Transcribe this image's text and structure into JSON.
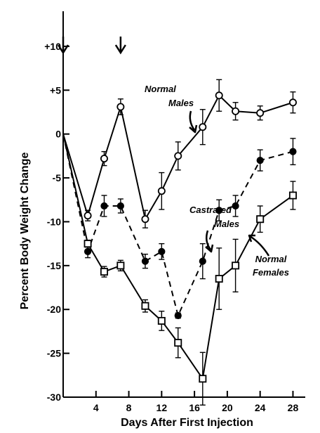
{
  "chart_data": {
    "type": "line",
    "title": "",
    "xlabel": "Days After First Injection",
    "ylabel": "Percent Body Weight Change",
    "xlim": [
      0,
      29.5
    ],
    "ylim": [
      -30,
      14
    ],
    "xticks": [
      4,
      8,
      12,
      16,
      20,
      24,
      28
    ],
    "xtick_labels": [
      "4",
      "8",
      "12",
      "16",
      "20",
      "24",
      "28"
    ],
    "yticks": [
      10,
      5,
      0,
      -5,
      -10,
      -15,
      -20,
      -25,
      -30
    ],
    "ytick_labels": [
      "+10",
      "+5",
      "0",
      "-5",
      "-10",
      "-15",
      "-20",
      "-25",
      "-30"
    ],
    "injection_days": [
      0,
      7
    ],
    "grid": false,
    "series": [
      {
        "name": "Normal Males",
        "label_lines": [
          "Normal",
          "Males"
        ],
        "marker": "open-circle",
        "linestyle": "solid",
        "x": [
          0,
          3,
          5,
          7,
          10,
          12,
          14,
          17,
          19,
          21,
          24,
          28
        ],
        "y": [
          0,
          -9.3,
          -2.8,
          3.1,
          -9.7,
          -6.5,
          -2.5,
          0.8,
          4.4,
          2.6,
          2.4,
          3.6
        ],
        "err": [
          0,
          0.6,
          0.8,
          0.9,
          1.0,
          2.1,
          1.6,
          2.0,
          1.8,
          1.0,
          0.8,
          1.2
        ]
      },
      {
        "name": "Castrated Males",
        "label_lines": [
          "Castrated",
          "Males"
        ],
        "marker": "filled-circle",
        "linestyle": "dashed",
        "x": [
          0,
          3,
          5,
          7,
          10,
          12,
          14,
          17,
          19,
          21,
          24,
          28
        ],
        "y": [
          0,
          -13.4,
          -8.2,
          -8.2,
          -14.5,
          -13.4,
          -20.7,
          -14.5,
          -8.7,
          -8.2,
          -3.0,
          -2.0
        ],
        "err": [
          0,
          0.7,
          1.2,
          0.8,
          0.8,
          0.9,
          0.3,
          2.0,
          1.2,
          1.2,
          1.2,
          1.5
        ]
      },
      {
        "name": "Normal Females",
        "label_lines": [
          "Normal",
          "Females"
        ],
        "marker": "open-square",
        "linestyle": "solid",
        "x": [
          0,
          3,
          5,
          7,
          10,
          12,
          14,
          17,
          19,
          21,
          24,
          28
        ],
        "y": [
          0,
          -12.5,
          -15.7,
          -15.0,
          -19.6,
          -21.3,
          -23.8,
          -27.9,
          -16.5,
          -15.0,
          -9.7,
          -7.0
        ],
        "err": [
          0,
          0.4,
          0.6,
          0.6,
          0.7,
          1.1,
          1.7,
          3.0,
          3.5,
          3.0,
          1.5,
          1.6
        ]
      }
    ]
  }
}
